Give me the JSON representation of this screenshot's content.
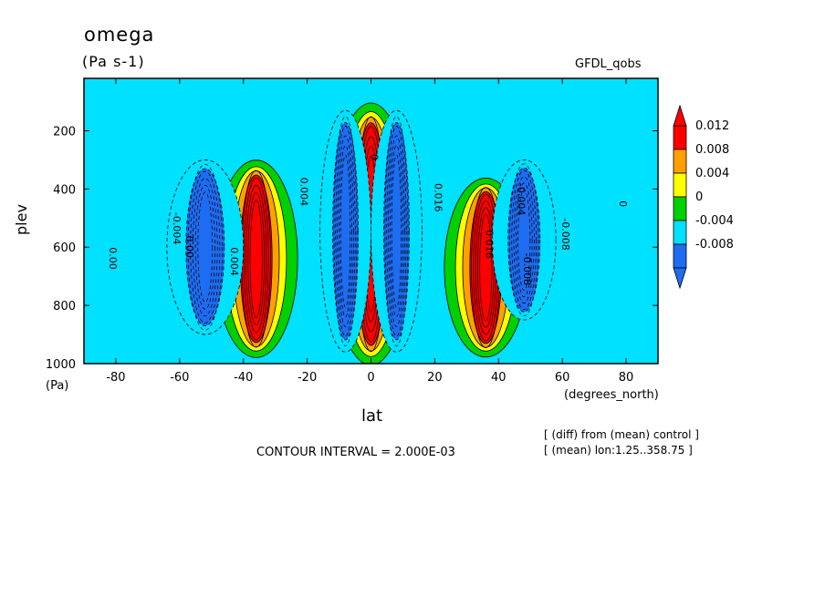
{
  "header": {
    "title": "omega",
    "units": "(Pa s-1)",
    "dataset": "GFDL_qobs"
  },
  "axes": {
    "ylabel": "plev",
    "yunits": "(Pa)",
    "xlabel": "lat",
    "xunits": "(degrees_north)"
  },
  "footer": {
    "contour_interval": "CONTOUR INTERVAL = 2.000E-03",
    "note_line1": "[ (diff) from (mean) control ]",
    "note_line2": "[ (mean) lon:1.25..358.75 ]"
  },
  "chart_data": {
    "type": "heatmap",
    "title": "omega",
    "subtitle": "(Pa s-1)",
    "xlabel": "lat",
    "ylabel": "plev",
    "xlim": [
      -90,
      90
    ],
    "ylim": [
      1000,
      20
    ],
    "x_ticks": [
      -80,
      -60,
      -40,
      -20,
      0,
      20,
      40,
      60,
      80
    ],
    "y_ticks": [
      200,
      400,
      600,
      800,
      1000
    ],
    "contour_interval": 0.002,
    "colorbar": {
      "levels": [
        -0.008,
        -0.004,
        0,
        0.004,
        0.008,
        0.012
      ],
      "level_labels": [
        "0.012",
        "0.008",
        "0.004",
        "0",
        "-0.004",
        "-0.008"
      ],
      "colors": [
        "#1e6cf0",
        "#00e0ff",
        "#00d000",
        "#ffff00",
        "#ffa000",
        "#ff0000"
      ]
    },
    "features": [
      {
        "lat_center": 0,
        "lat_halfwidth": 5,
        "plev_top": 130,
        "plev_bottom": 980,
        "sign": "positive",
        "level": 0.012
      },
      {
        "lat_center": -36,
        "lat_halfwidth": 5,
        "plev_top": 320,
        "plev_bottom": 960,
        "sign": "positive",
        "level": 0.012
      },
      {
        "lat_center": 36,
        "lat_halfwidth": 5,
        "plev_top": 380,
        "plev_bottom": 960,
        "sign": "positive",
        "level": 0.012
      },
      {
        "lat_center": -52,
        "lat_halfwidth": 6,
        "plev_top": 300,
        "plev_bottom": 900,
        "sign": "negative",
        "level": -0.008
      },
      {
        "lat_center": 48,
        "lat_halfwidth": 5,
        "plev_top": 300,
        "plev_bottom": 850,
        "sign": "negative",
        "level": -0.008
      },
      {
        "lat_center": -8,
        "lat_halfwidth": 4,
        "plev_top": 130,
        "plev_bottom": 960,
        "sign": "negative",
        "level": -0.008
      },
      {
        "lat_center": 8,
        "lat_halfwidth": 4,
        "plev_top": 130,
        "plev_bottom": 960,
        "sign": "negative",
        "level": -0.008
      }
    ],
    "contour_labels": [
      "0.00",
      "-0.004",
      "0.004",
      "0.016",
      "-0.008",
      "0"
    ]
  }
}
